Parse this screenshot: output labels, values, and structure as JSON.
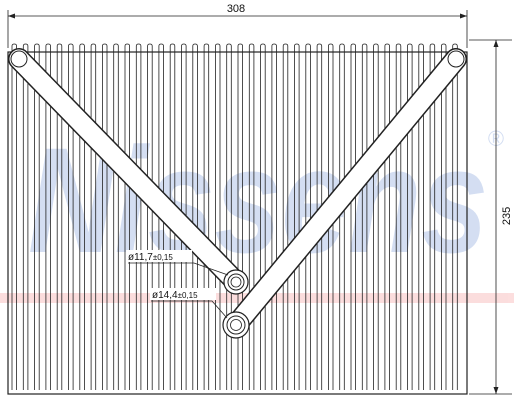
{
  "watermark": {
    "text": "Nissens",
    "registered_mark": "®",
    "color": "#3f6fc8",
    "band_color": "#f06a6a"
  },
  "dimensions": {
    "width_label": "308",
    "height_label": "235"
  },
  "callouts": {
    "outlet": {
      "diameter_symbol": "ø",
      "value": "11,7",
      "tolerance": "±0,15"
    },
    "inlet": {
      "diameter_symbol": "ø",
      "value": "14,4",
      "tolerance": "±0,15"
    }
  },
  "colors": {
    "line": "#222222",
    "pipe_fill": "#ffffff"
  }
}
